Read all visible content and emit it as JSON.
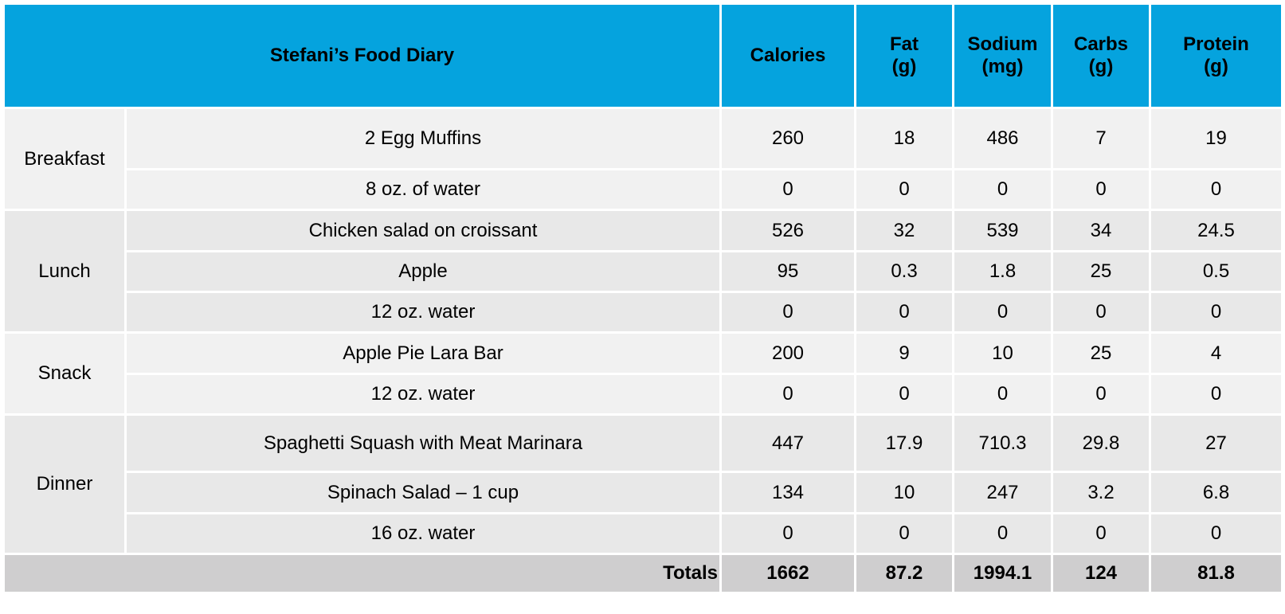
{
  "title": "Stefani’s Food Diary",
  "columns": {
    "calories": "Calories",
    "fat": "Fat\n(g)",
    "sodium": "Sodium\n(mg)",
    "carbs": "Carbs\n(g)",
    "protein": "Protein\n(g)"
  },
  "meals": [
    {
      "name": "Breakfast",
      "items": [
        {
          "food": "2 Egg Muffins",
          "calories": "260",
          "fat": "18",
          "sodium": "486",
          "carbs": "7",
          "protein": "19"
        },
        {
          "food": "8 oz. of water",
          "calories": "0",
          "fat": "0",
          "sodium": "0",
          "carbs": "0",
          "protein": "0"
        }
      ]
    },
    {
      "name": "Lunch",
      "items": [
        {
          "food": "Chicken salad on croissant",
          "calories": "526",
          "fat": "32",
          "sodium": "539",
          "carbs": "34",
          "protein": "24.5"
        },
        {
          "food": "Apple",
          "calories": "95",
          "fat": "0.3",
          "sodium": "1.8",
          "carbs": "25",
          "protein": "0.5"
        },
        {
          "food": "12 oz. water",
          "calories": "0",
          "fat": "0",
          "sodium": "0",
          "carbs": "0",
          "protein": "0"
        }
      ]
    },
    {
      "name": "Snack",
      "items": [
        {
          "food": "Apple Pie Lara Bar",
          "calories": "200",
          "fat": "9",
          "sodium": "10",
          "carbs": "25",
          "protein": "4"
        },
        {
          "food": "12 oz. water",
          "calories": "0",
          "fat": "0",
          "sodium": "0",
          "carbs": "0",
          "protein": "0"
        }
      ]
    },
    {
      "name": "Dinner",
      "items": [
        {
          "food": "Spaghetti Squash with Meat Marinara",
          "calories": "447",
          "fat": "17.9",
          "sodium": "710.3",
          "carbs": "29.8",
          "protein": "27"
        },
        {
          "food": "Spinach Salad – 1 cup",
          "calories": "134",
          "fat": "10",
          "sodium": "247",
          "carbs": "3.2",
          "protein": "6.8"
        },
        {
          "food": "16 oz. water",
          "calories": "0",
          "fat": "0",
          "sodium": "0",
          "carbs": "0",
          "protein": "0"
        }
      ]
    }
  ],
  "totals": {
    "label": "Totals",
    "calories": "1662",
    "fat": "87.2",
    "sodium": "1994.1",
    "carbs": "124",
    "protein": "81.8"
  },
  "colors": {
    "header": "#05a3de",
    "row_light": "#f1f1f1",
    "row_dark": "#e8e8e8",
    "totals": "#cfcecf"
  }
}
